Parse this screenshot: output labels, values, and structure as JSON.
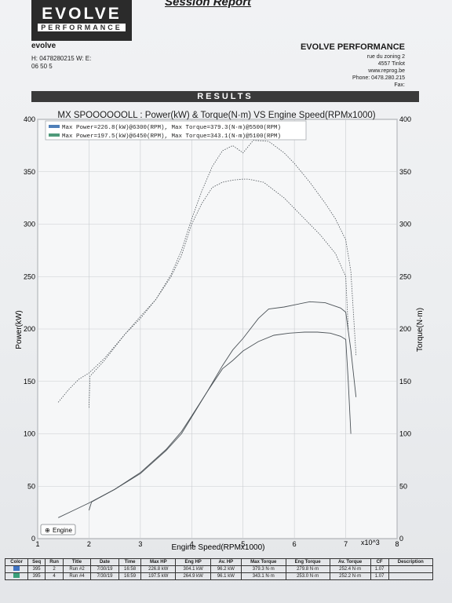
{
  "header": {
    "logo_main": "EVOLVE",
    "logo_sub": "PERFORMANCE",
    "report_title": "Session Report",
    "left_brand": "evolve",
    "left_lines": [
      "H: 0478280215  W:    E:",
      "06 50 5"
    ],
    "right_brand": "EVOLVE PERFORMANCE",
    "right_lines": [
      "rue du zoning 2",
      "4557 Tinlot",
      "www.reprog.be",
      "Phone: 0478.280.215",
      "Fax:"
    ]
  },
  "results_label": "RESULTS",
  "colors": {
    "series1": "#4f7fb8",
    "series2": "#4f9a7a",
    "curve": "#4c5358",
    "grid": "#c9ccd0",
    "plot_bg": "#f6f7f8"
  },
  "chart_data": {
    "type": "line",
    "title": "MX SPOOOOOOLL : Power(kW) & Torque(N·m) VS Engine Speed(RPMx1000)",
    "xlabel": "Engine Speed(RPMx1000)",
    "ylabel_left": "Power(kW)",
    "ylabel_right": "Torque(N·m)",
    "x_unit_label": "x10^3",
    "xlim": [
      1,
      8
    ],
    "ylim_left": [
      0,
      400
    ],
    "ylim_right": [
      0,
      400
    ],
    "x_ticks": [
      1,
      2,
      3,
      4,
      5,
      6,
      7,
      8
    ],
    "y_ticks_left": [
      0,
      50,
      100,
      150,
      200,
      250,
      300,
      350,
      400
    ],
    "y_ticks_right": [
      0,
      50,
      100,
      150,
      200,
      250,
      300,
      350,
      400
    ],
    "grid": true,
    "legend_position": "top-left",
    "engine_button_label": "Engine",
    "legend": [
      "Max Power=226.8(kW)@6300(RPM), Max Torque=379.3(N·m)@5500(RPM)",
      "Max Power=197.5(kW)@6450(RPM), Max Torque=343.1(N·m)@5100(RPM)"
    ],
    "series": [
      {
        "name": "Run #2",
        "axis": "left",
        "kind": "power",
        "x": [
          1.4,
          1.7,
          2.0,
          2.5,
          3.0,
          3.5,
          3.8,
          4.0,
          4.3,
          4.6,
          4.8,
          5.0,
          5.3,
          5.5,
          5.8,
          6.0,
          6.3,
          6.6,
          6.9,
          7.0,
          7.1,
          7.2
        ],
        "y": [
          20,
          27,
          34,
          47,
          63,
          85,
          102,
          117,
          140,
          165,
          180,
          191,
          210,
          219,
          221,
          223,
          226,
          225,
          220,
          216,
          180,
          135
        ]
      },
      {
        "name": "Run #4",
        "axis": "left",
        "kind": "power",
        "x": [
          2.0,
          2.05,
          2.5,
          3.0,
          3.5,
          3.8,
          4.0,
          4.3,
          4.6,
          4.8,
          5.0,
          5.3,
          5.6,
          5.9,
          6.2,
          6.45,
          6.7,
          6.9,
          7.0,
          7.05,
          7.1
        ],
        "y": [
          27,
          35,
          47,
          62,
          84,
          100,
          116,
          140,
          162,
          170,
          179,
          188,
          194,
          196,
          197,
          197,
          196,
          193,
          190,
          150,
          100
        ]
      },
      {
        "name": "Run #2",
        "axis": "right",
        "kind": "torque",
        "x": [
          1.4,
          1.6,
          1.8,
          2.0,
          2.3,
          2.7,
          3.0,
          3.3,
          3.6,
          3.8,
          4.0,
          4.2,
          4.4,
          4.6,
          4.8,
          5.0,
          5.2,
          5.5,
          5.8,
          6.0,
          6.3,
          6.6,
          6.8,
          7.0,
          7.1,
          7.2
        ],
        "y": [
          130,
          142,
          152,
          158,
          172,
          195,
          212,
          228,
          252,
          275,
          305,
          332,
          355,
          370,
          375,
          368,
          380,
          379,
          368,
          358,
          340,
          320,
          305,
          285,
          255,
          175
        ]
      },
      {
        "name": "Run #4",
        "axis": "right",
        "kind": "torque",
        "x": [
          2.0,
          2.02,
          2.3,
          2.7,
          3.0,
          3.3,
          3.6,
          3.8,
          4.0,
          4.2,
          4.4,
          4.6,
          4.8,
          5.0,
          5.1,
          5.4,
          5.8,
          6.2,
          6.5,
          6.8,
          7.0,
          7.05
        ],
        "y": [
          125,
          155,
          170,
          195,
          210,
          228,
          250,
          270,
          300,
          320,
          335,
          340,
          342,
          343,
          343,
          340,
          325,
          305,
          290,
          272,
          250,
          200
        ]
      }
    ]
  },
  "table": {
    "headers": [
      "Color",
      "Seq",
      "Run",
      "Title",
      "Date",
      "Time",
      "Max HP",
      "Eng HP",
      "Av. HP",
      "Max Torque",
      "Eng Torque",
      "Av. Torque",
      "CF",
      "Description"
    ],
    "rows": [
      {
        "color": "#3f74c4",
        "cells": [
          "395",
          "2",
          "Run #2",
          "7/30/19",
          "16:58",
          "226.8 kW",
          "304.1 kW",
          "96.2 kW",
          "379.3 N·m",
          "279.8 N·m",
          "252.4 N·m",
          "1.07",
          ""
        ]
      },
      {
        "color": "#3aa07a",
        "cells": [
          "395",
          "4",
          "Run #4",
          "7/30/19",
          "16:59",
          "197.5 kW",
          "264.9 kW",
          "96.1 kW",
          "343.1 N·m",
          "253.0 N·m",
          "252.2 N·m",
          "1.07",
          ""
        ]
      }
    ]
  }
}
